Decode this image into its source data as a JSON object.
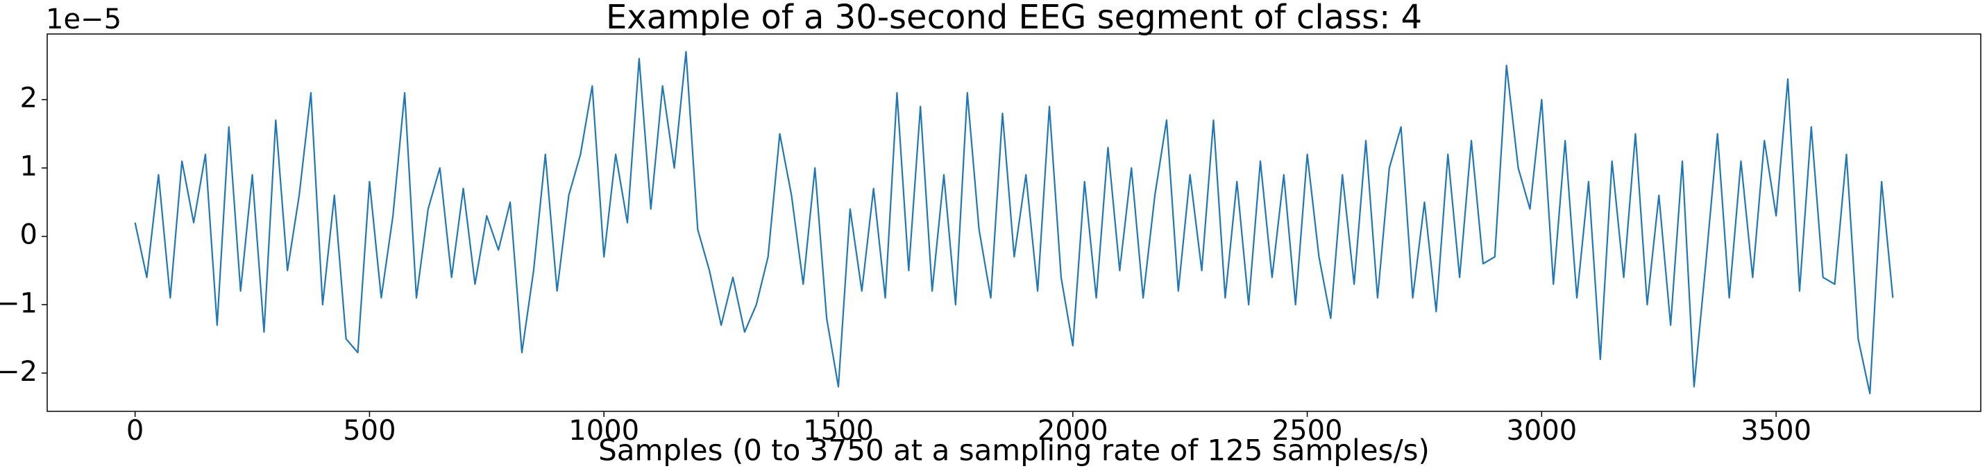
{
  "chart_data": {
    "type": "line",
    "title": "Example of a 30-second EEG segment of class: 4",
    "x_label": "Samples (0 to 3750 at a sampling rate of 125 samples/s)",
    "y_offset_label": "1e−5",
    "x": [
      0,
      25,
      50,
      75,
      100,
      125,
      150,
      175,
      200,
      225,
      250,
      275,
      300,
      325,
      350,
      375,
      400,
      425,
      450,
      475,
      500,
      525,
      550,
      575,
      600,
      625,
      650,
      675,
      700,
      725,
      750,
      775,
      800,
      825,
      850,
      875,
      900,
      925,
      950,
      975,
      1000,
      1025,
      1050,
      1075,
      1100,
      1125,
      1150,
      1175,
      1200,
      1225,
      1250,
      1275,
      1300,
      1325,
      1350,
      1375,
      1400,
      1425,
      1450,
      1475,
      1500,
      1525,
      1550,
      1575,
      1600,
      1625,
      1650,
      1675,
      1700,
      1725,
      1750,
      1775,
      1800,
      1825,
      1850,
      1875,
      1900,
      1925,
      1950,
      1975,
      2000,
      2025,
      2050,
      2075,
      2100,
      2125,
      2150,
      2175,
      2200,
      2225,
      2250,
      2275,
      2300,
      2325,
      2350,
      2375,
      2400,
      2425,
      2450,
      2475,
      2500,
      2525,
      2550,
      2575,
      2600,
      2625,
      2650,
      2675,
      2700,
      2725,
      2750,
      2775,
      2800,
      2825,
      2850,
      2875,
      2900,
      2925,
      2950,
      2975,
      3000,
      3025,
      3050,
      3075,
      3100,
      3125,
      3150,
      3175,
      3200,
      3225,
      3250,
      3275,
      3300,
      3325,
      3350,
      3375,
      3400,
      3425,
      3450,
      3475,
      3500,
      3525,
      3550,
      3575,
      3600,
      3625,
      3650,
      3675,
      3700,
      3725,
      3749
    ],
    "series": [
      {
        "color": "#1f77b4",
        "values": [
          0.2,
          -0.6,
          0.9,
          -0.9,
          1.1,
          0.2,
          1.2,
          -1.3,
          1.6,
          -0.8,
          0.9,
          -1.4,
          1.7,
          -0.5,
          0.6,
          2.1,
          -1.0,
          0.6,
          -1.5,
          -1.7,
          0.8,
          -0.9,
          0.3,
          2.1,
          -0.9,
          0.4,
          1.0,
          -0.6,
          0.7,
          -0.7,
          0.3,
          -0.2,
          0.5,
          -1.7,
          -0.5,
          1.2,
          -0.8,
          0.6,
          1.2,
          2.2,
          -0.3,
          1.2,
          0.2,
          2.6,
          0.4,
          2.2,
          1.0,
          2.7,
          0.1,
          -0.5,
          -1.3,
          -0.6,
          -1.4,
          -1.0,
          -0.3,
          1.5,
          0.6,
          -0.7,
          1.0,
          -1.2,
          -2.2,
          0.4,
          -0.8,
          0.7,
          -0.9,
          2.1,
          -0.5,
          1.9,
          -0.8,
          0.9,
          -1.0,
          2.1,
          0.1,
          -0.9,
          1.8,
          -0.3,
          0.9,
          -0.8,
          1.9,
          -0.6,
          -1.6,
          0.8,
          -0.9,
          1.3,
          -0.5,
          1.0,
          -0.9,
          0.6,
          1.7,
          -0.8,
          0.9,
          -0.5,
          1.7,
          -0.9,
          0.8,
          -1.0,
          1.1,
          -0.6,
          0.9,
          -1.0,
          1.2,
          -0.3,
          -1.2,
          0.9,
          -0.7,
          1.4,
          -0.9,
          1.0,
          1.6,
          -0.9,
          0.5,
          -1.1,
          1.2,
          -0.6,
          1.4,
          -0.4,
          -0.3,
          2.5,
          1.0,
          0.4,
          2.0,
          -0.7,
          1.4,
          -0.9,
          0.8,
          -1.8,
          1.1,
          -0.6,
          1.5,
          -1.0,
          0.6,
          -1.3,
          1.1,
          -2.2,
          -0.4,
          1.5,
          -0.9,
          1.1,
          -0.6,
          1.4,
          0.3,
          2.3,
          -0.8,
          1.6,
          -0.6,
          -0.7,
          1.2,
          -1.5,
          -2.3,
          0.8,
          -0.9
        ]
      }
    ],
    "xlim": [
      -187.45,
      3936.45
    ],
    "ylim": [
      -2.56,
      2.96
    ],
    "xticks": [
      0,
      500,
      1000,
      1500,
      2000,
      2500,
      3000,
      3500
    ],
    "yticks": [
      {
        "value": -2,
        "label": "−2"
      },
      {
        "value": -1,
        "label": "−1"
      },
      0,
      1,
      2
    ]
  }
}
